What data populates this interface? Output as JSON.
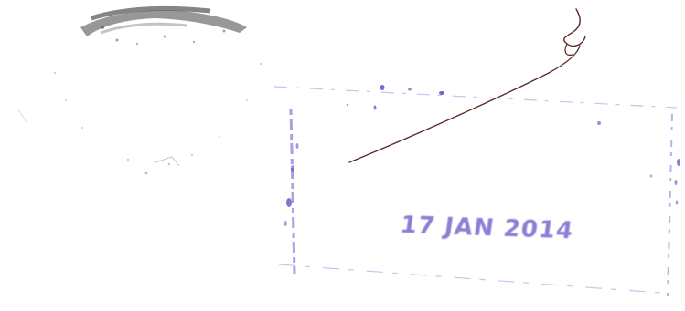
{
  "document": {
    "stamp": {
      "date_text": "17 JAN 2014",
      "ink_color": "#6a52c8"
    },
    "seal": {
      "ink_color": "#444444"
    },
    "signature": {
      "ink_color": "#5a2a2a"
    },
    "background_color": "#ffffff"
  }
}
